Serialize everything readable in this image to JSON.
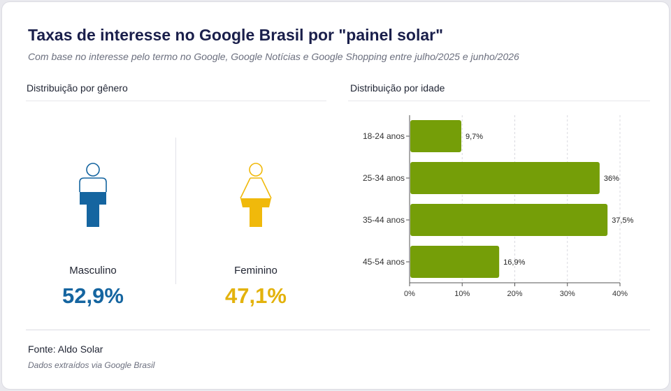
{
  "title": "Taxas de interesse no Google Brasil por \"painel solar\"",
  "subtitle": "Com base no interesse pelo termo no Google, Google Notícias e Google Shopping entre julho/2025 e junho/2026",
  "gender_section": {
    "title": "Distribuição por gênero",
    "male": {
      "label": "Masculino",
      "value_text": "52,9%",
      "value": 52.9,
      "color": "#1565a0",
      "icon": "male-person-icon"
    },
    "female": {
      "label": "Feminino",
      "value_text": "47,1%",
      "value": 47.1,
      "color": "#f0b90b",
      "icon": "female-person-icon"
    }
  },
  "age_section": {
    "title": "Distribuição por idade"
  },
  "chart_data": {
    "type": "bar",
    "orientation": "horizontal",
    "categories": [
      "18-24 anos",
      "25-34 anos",
      "35-44 anos",
      "45-54 anos"
    ],
    "values": [
      9.7,
      36,
      37.5,
      16.9
    ],
    "value_labels": [
      "9,7%",
      "36%",
      "37,5%",
      "16,9%"
    ],
    "xlim": [
      0,
      40
    ],
    "x_ticks": [
      0,
      10,
      20,
      30,
      40
    ],
    "x_tick_labels": [
      "0%",
      "10%",
      "20%",
      "30%",
      "40%"
    ],
    "bar_color": "#759e08",
    "grid": "vertical-dashed"
  },
  "footer": {
    "source": "Fonte: Aldo Solar",
    "note": "Dados extraídos via Google Brasil"
  }
}
